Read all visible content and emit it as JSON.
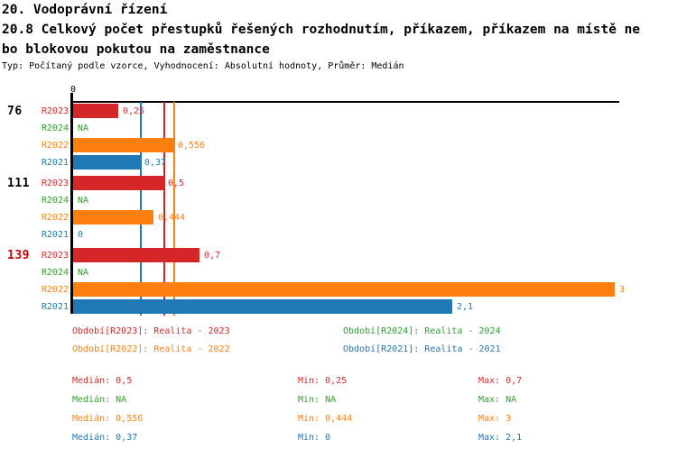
{
  "header": {
    "section_title": "20. Vodoprávní řízení",
    "indicator_title_line1": "20.8 Celkový počet přestupků řešených rozhodnutím, příkazem, příkazem na místě ne",
    "indicator_title_line2": "bo blokovou pokutou na zaměstnance",
    "meta": "Typ: Počítaný podle vzorce, Vyhodnocení: Absolutní hodnoty, Průměr: Medián"
  },
  "chart_data": {
    "type": "bar",
    "orientation": "horizontal",
    "x_axis": {
      "zero_label": "0",
      "min": 0,
      "max": 3,
      "grid": false
    },
    "series_colors": {
      "R2023": "#d62728",
      "R2024": "#2ca02c",
      "R2022": "#ff7f0e",
      "R2021": "#1f77b4"
    },
    "groups": [
      {
        "label": "76",
        "label_color": "#000000",
        "rows": [
          {
            "series": "R2023",
            "value": 0.25,
            "display": "0,25"
          },
          {
            "series": "R2024",
            "value": null,
            "display": "NA"
          },
          {
            "series": "R2022",
            "value": 0.556,
            "display": "0,556"
          },
          {
            "series": "R2021",
            "value": 0.37,
            "display": "0,37"
          }
        ]
      },
      {
        "label": "111",
        "label_color": "#000000",
        "rows": [
          {
            "series": "R2023",
            "value": 0.5,
            "display": "0,5"
          },
          {
            "series": "R2024",
            "value": null,
            "display": "NA"
          },
          {
            "series": "R2022",
            "value": 0.444,
            "display": "0,444"
          },
          {
            "series": "R2021",
            "value": 0,
            "display": "0"
          }
        ]
      },
      {
        "label": "139",
        "label_color": "#cc0000",
        "rows": [
          {
            "series": "R2023",
            "value": 0.7,
            "display": "0,7"
          },
          {
            "series": "R2024",
            "value": null,
            "display": "NA"
          },
          {
            "series": "R2022",
            "value": 3,
            "display": "3"
          },
          {
            "series": "R2021",
            "value": 2.1,
            "display": "2,1"
          }
        ]
      }
    ],
    "median_lines": [
      {
        "series": "R2021",
        "value": 0.37,
        "color": "#1f77b4"
      },
      {
        "series": "R2023",
        "value": 0.5,
        "color": "#d62728"
      },
      {
        "series": "R2022",
        "value": 0.556,
        "color": "#ff7f0e"
      }
    ]
  },
  "legend": {
    "items": [
      {
        "label": "Období[R2023]: Realita - 2023",
        "color": "#d62728"
      },
      {
        "label": "Období[R2024]: Realita - 2024",
        "color": "#2ca02c"
      },
      {
        "label": "Období[R2022]: Realita - 2022",
        "color": "#ff7f0e"
      },
      {
        "label": "Období[R2021]: Realita - 2021",
        "color": "#1f77b4"
      }
    ]
  },
  "stats": {
    "labels": {
      "median": "Medián:",
      "min": "Min:",
      "max": "Max:"
    },
    "rows": [
      {
        "series": "R2023",
        "color": "#d62728",
        "median": "0,5",
        "min": "0,25",
        "max": "0,7"
      },
      {
        "series": "R2024",
        "color": "#2ca02c",
        "median": "NA",
        "min": "NA",
        "max": "NA"
      },
      {
        "series": "R2022",
        "color": "#ff7f0e",
        "median": "0,556",
        "min": "0,444",
        "max": "3"
      },
      {
        "series": "R2021",
        "color": "#1f77b4",
        "median": "0,37",
        "min": "0",
        "max": "2,1"
      }
    ]
  }
}
